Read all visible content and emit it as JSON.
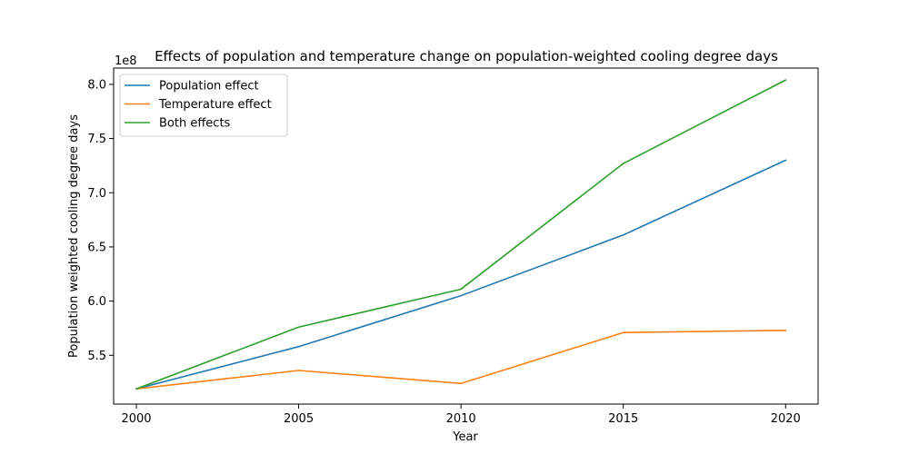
{
  "chart_data": {
    "type": "line",
    "title": "Effects of population and temperature change on population-weighted cooling degree days",
    "xlabel": "Year",
    "ylabel": "Population weighted cooling degree days",
    "offset_label": "1e8",
    "x": [
      2000,
      2005,
      2010,
      2015,
      2020
    ],
    "xticks": [
      "2000",
      "2005",
      "2010",
      "2015",
      "2020"
    ],
    "yticks": [
      "5.5",
      "6.0",
      "6.5",
      "7.0",
      "7.5",
      "8.0"
    ],
    "ytick_values": [
      5.5,
      6.0,
      6.5,
      7.0,
      7.5,
      8.0
    ],
    "xlim": [
      1999.3,
      2021.0
    ],
    "ylim": [
      5.05,
      8.15
    ],
    "grid": false,
    "legend_position": "upper-left",
    "series": [
      {
        "name": "Population effect",
        "color": "#1f77b4",
        "values": [
          5.19,
          5.58,
          6.05,
          6.61,
          7.3
        ]
      },
      {
        "name": "Temperature effect",
        "color": "#ff7f0e",
        "values": [
          5.19,
          5.36,
          5.24,
          5.71,
          5.73
        ]
      },
      {
        "name": "Both effects",
        "color": "#2ca02c",
        "values": [
          5.19,
          5.76,
          6.11,
          7.27,
          8.04
        ]
      }
    ]
  }
}
